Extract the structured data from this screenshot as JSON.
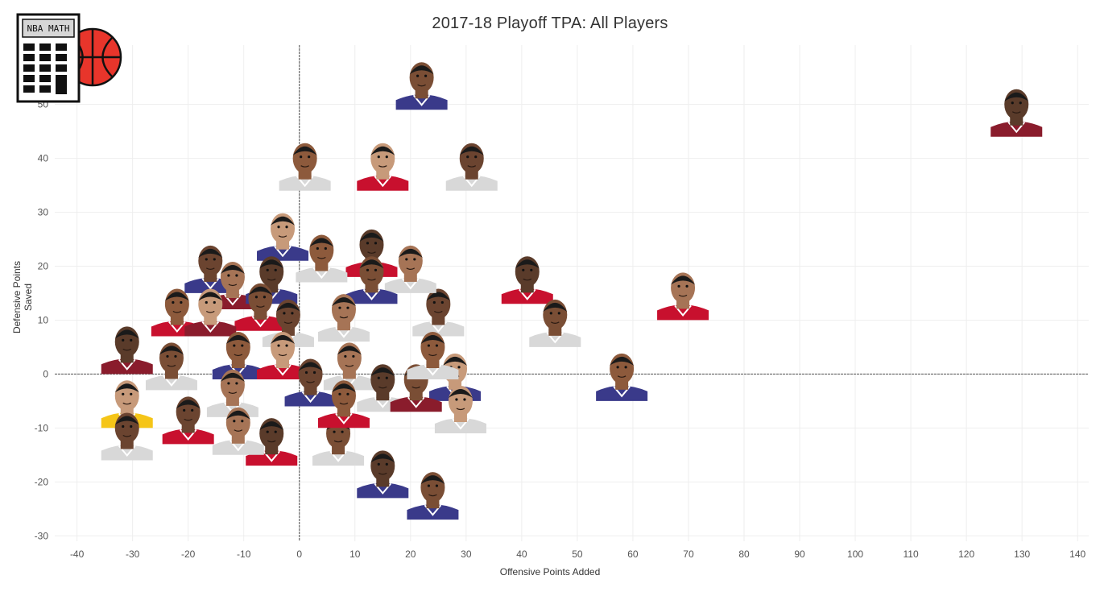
{
  "chart_data": {
    "type": "scatter",
    "title": "2017-18 Playoff TPA: All Players",
    "xlabel": "Offensive Points Added",
    "ylabel": "Defensive Points Saved",
    "xlim": [
      -44,
      142
    ],
    "ylim": [
      -31,
      61
    ],
    "xticks": [
      -40,
      -30,
      -20,
      -10,
      0,
      10,
      20,
      30,
      40,
      50,
      60,
      70,
      80,
      90,
      100,
      110,
      120,
      130,
      140
    ],
    "yticks": [
      -30,
      -20,
      -10,
      0,
      10,
      20,
      30,
      40,
      50
    ],
    "grid": true,
    "zero_lines": true,
    "marker": "player-headshot",
    "points": [
      {
        "x": 129,
        "y": 47,
        "jersey": "#8a1c2c"
      },
      {
        "x": 22,
        "y": 52,
        "jersey": "#3a3a8a"
      },
      {
        "x": 1,
        "y": 37,
        "jersey": "#d8d8d8"
      },
      {
        "x": 15,
        "y": 37,
        "jersey": "#c8102e"
      },
      {
        "x": 31,
        "y": 37,
        "jersey": "#d8d8d8"
      },
      {
        "x": 69,
        "y": 13,
        "jersey": "#c8102e"
      },
      {
        "x": 41,
        "y": 16,
        "jersey": "#c8102e"
      },
      {
        "x": 46,
        "y": 8,
        "jersey": "#d8d8d8"
      },
      {
        "x": 58,
        "y": -2,
        "jersey": "#3a3a8a"
      },
      {
        "x": 28,
        "y": -2,
        "jersey": "#3a3a8a"
      },
      {
        "x": 25,
        "y": 10,
        "jersey": "#d8d8d8"
      },
      {
        "x": 20,
        "y": 18,
        "jersey": "#d8d8d8"
      },
      {
        "x": 13,
        "y": 21,
        "jersey": "#c8102e"
      },
      {
        "x": 13,
        "y": 16,
        "jersey": "#3a3a8a"
      },
      {
        "x": 4,
        "y": 20,
        "jersey": "#d8d8d8"
      },
      {
        "x": -3,
        "y": 24,
        "jersey": "#3a3a8a"
      },
      {
        "x": -16,
        "y": 18,
        "jersey": "#3a3a8a"
      },
      {
        "x": -12,
        "y": 15,
        "jersey": "#8a1c2c"
      },
      {
        "x": -5,
        "y": 16,
        "jersey": "#3a3a8a"
      },
      {
        "x": -7,
        "y": 11,
        "jersey": "#c8102e"
      },
      {
        "x": -22,
        "y": 10,
        "jersey": "#c8102e"
      },
      {
        "x": -16,
        "y": 10,
        "jersey": "#8a1c2c"
      },
      {
        "x": -2,
        "y": 8,
        "jersey": "#d8d8d8"
      },
      {
        "x": 8,
        "y": 9,
        "jersey": "#d8d8d8"
      },
      {
        "x": -31,
        "y": 3,
        "jersey": "#8a1c2c"
      },
      {
        "x": -23,
        "y": 0,
        "jersey": "#d8d8d8"
      },
      {
        "x": -11,
        "y": 2,
        "jersey": "#3a3a8a"
      },
      {
        "x": -3,
        "y": 2,
        "jersey": "#c8102e"
      },
      {
        "x": 2,
        "y": -3,
        "jersey": "#3a3a8a"
      },
      {
        "x": 9,
        "y": 0,
        "jersey": "#d8d8d8"
      },
      {
        "x": 15,
        "y": -4,
        "jersey": "#d8d8d8"
      },
      {
        "x": 21,
        "y": -4,
        "jersey": "#8a1c2c"
      },
      {
        "x": 24,
        "y": 2,
        "jersey": "#d8d8d8"
      },
      {
        "x": -31,
        "y": -7,
        "jersey": "#f5c518"
      },
      {
        "x": -20,
        "y": -10,
        "jersey": "#c8102e"
      },
      {
        "x": -12,
        "y": -5,
        "jersey": "#d8d8d8"
      },
      {
        "x": -5,
        "y": -14,
        "jersey": "#c8102e"
      },
      {
        "x": 7,
        "y": -14,
        "jersey": "#d8d8d8"
      },
      {
        "x": 8,
        "y": -7,
        "jersey": "#c8102e"
      },
      {
        "x": 29,
        "y": -8,
        "jersey": "#d8d8d8"
      },
      {
        "x": -31,
        "y": -13,
        "jersey": "#d8d8d8"
      },
      {
        "x": -11,
        "y": -12,
        "jersey": "#d8d8d8"
      },
      {
        "x": 15,
        "y": -20,
        "jersey": "#3a3a8a"
      },
      {
        "x": 24,
        "y": -24,
        "jersey": "#3a3a8a"
      }
    ]
  },
  "logo": {
    "label": "NBA MATH",
    "ball_color": "#e8352b"
  }
}
